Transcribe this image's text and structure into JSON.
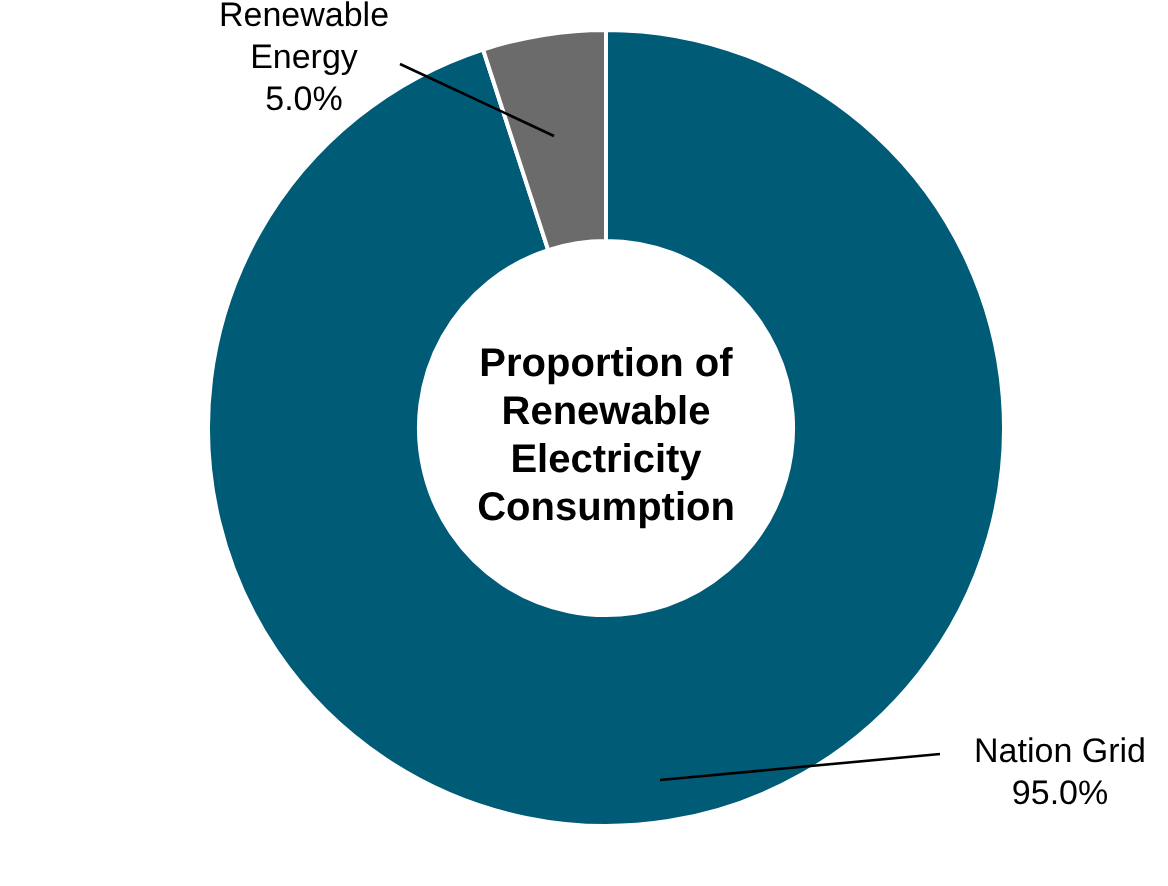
{
  "chart_data": {
    "type": "donut",
    "title": "Proportion of Renewable Electricity Consumption",
    "categories": [
      "Nation Grid",
      "Renewable Energy"
    ],
    "values": [
      95,
      5
    ],
    "colors": [
      "#005b77",
      "#6b6b6b"
    ],
    "value_labels": [
      "95.0%",
      "5.0%"
    ],
    "legend": false
  }
}
